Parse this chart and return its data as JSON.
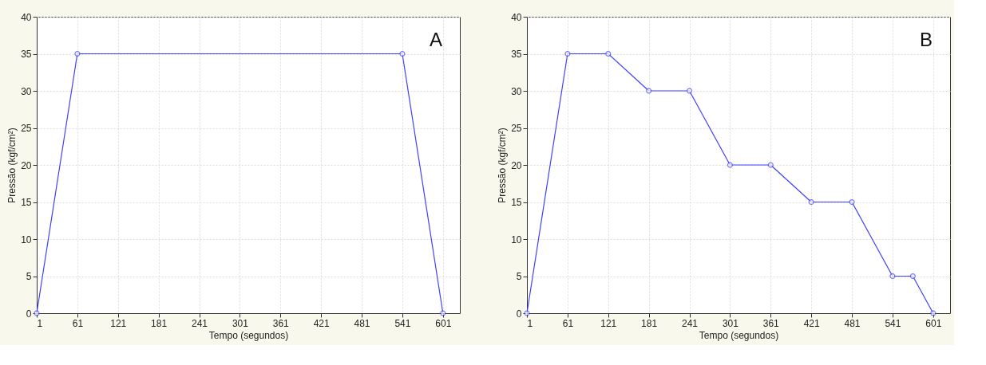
{
  "chart_data": [
    {
      "type": "line",
      "xlabel": "Tempo (segundos)",
      "ylabel": "Pressão (kgf/cm²)",
      "annotations": [
        "A"
      ],
      "x": [
        1,
        61,
        541,
        601
      ],
      "series": [
        {
          "color": "#4040ff",
          "values": [
            0,
            35,
            35,
            0
          ]
        }
      ],
      "xlim": [
        1,
        626
      ],
      "xticks": [
        1,
        61,
        121,
        181,
        241,
        301,
        361,
        421,
        481,
        541,
        601
      ],
      "ylim": [
        0,
        40
      ],
      "yticks": [
        0,
        5,
        10,
        15,
        20,
        25,
        30,
        35,
        40
      ],
      "grid": true,
      "marker": "circle",
      "line_style": "solid"
    },
    {
      "type": "line",
      "xlabel": "Tempo (segundos)",
      "ylabel": "Pressão (kgf/cm²)",
      "annotations": [
        "B"
      ],
      "x": [
        1,
        61,
        121,
        181,
        241,
        301,
        361,
        421,
        481,
        541,
        571,
        601
      ],
      "series": [
        {
          "color": "#4040ff",
          "values": [
            0,
            35,
            35,
            30,
            30,
            20,
            20,
            15,
            15,
            5,
            5,
            0
          ]
        }
      ],
      "xlim": [
        1,
        626
      ],
      "xticks": [
        1,
        61,
        121,
        181,
        241,
        301,
        361,
        421,
        481,
        541,
        601
      ],
      "ylim": [
        0,
        40
      ],
      "yticks": [
        0,
        5,
        10,
        15,
        20,
        25,
        30,
        35,
        40
      ],
      "grid": true,
      "marker": "circle",
      "line_style": "solid"
    }
  ]
}
